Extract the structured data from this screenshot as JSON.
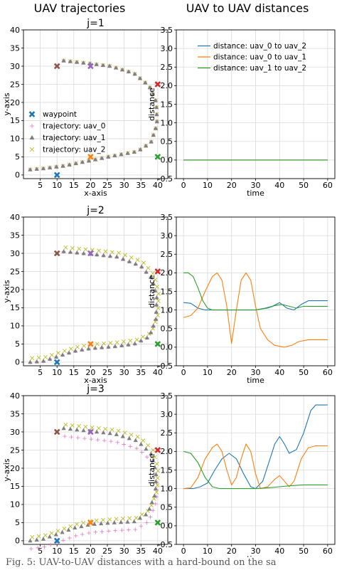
{
  "header": {
    "left_title": "UAV trajectories",
    "right_title": "UAV to UAV distances"
  },
  "caption": "Fig. 5: UAV-to-UAV distances with a hard-bound on the sa",
  "colors": {
    "waypoint_blue": "#1f77b4",
    "waypoint_orange": "#ff7f0e",
    "waypoint_purple": "#9467bd",
    "waypoint_red": "#d62728",
    "waypoint_green": "#2ca02c",
    "waypoint_brown": "#8c564b",
    "uav_0": "#e377c2",
    "uav_1": "#7f7f7f",
    "uav_2": "#bcbd22",
    "dist_02": "#1f77b4",
    "dist_01": "#ff7f0e",
    "dist_12": "#2ca02c"
  },
  "chart_data": [
    {
      "type": "scatter",
      "title": "j=1",
      "xlabel": "x-axis",
      "ylabel": "y-axis",
      "xlim": [
        0,
        43
      ],
      "ylim": [
        -1,
        40
      ],
      "xticks": [
        5,
        10,
        15,
        20,
        25,
        30,
        35,
        40
      ],
      "yticks": [
        0,
        5,
        10,
        15,
        20,
        25,
        30,
        35,
        40
      ],
      "grid": true,
      "legend": "center-left",
      "legend_entries": [
        "waypoint",
        "trajectory: uav_0",
        "trajectory: uav_1",
        "trajectory: uav_2"
      ],
      "waypoints": [
        {
          "x": 10,
          "y": 0,
          "color": "#1f77b4"
        },
        {
          "x": 20,
          "y": 5,
          "color": "#ff7f0e"
        },
        {
          "x": 40,
          "y": 5,
          "color": "#2ca02c"
        },
        {
          "x": 40,
          "y": 25,
          "color": "#d62728"
        },
        {
          "x": 20,
          "y": 30,
          "color": "#9467bd"
        },
        {
          "x": 10,
          "y": 30,
          "color": "#8c564b"
        }
      ],
      "trajectory_path": [
        [
          2,
          1.5
        ],
        [
          6,
          1.8
        ],
        [
          12,
          2.5
        ],
        [
          20,
          4
        ],
        [
          28,
          5.5
        ],
        [
          34,
          6.5
        ],
        [
          38,
          9
        ],
        [
          39.8,
          14
        ],
        [
          39.6,
          20
        ],
        [
          37.5,
          24.5
        ],
        [
          33,
          28
        ],
        [
          26,
          30
        ],
        [
          19,
          30.8
        ],
        [
          12,
          31.5
        ]
      ],
      "series": [
        {
          "name": "trajectory: uav_0",
          "offset": [
            0,
            0
          ]
        },
        {
          "name": "trajectory: uav_1",
          "offset": [
            0,
            0
          ]
        },
        {
          "name": "trajectory: uav_2",
          "offset": [
            0,
            0
          ]
        }
      ]
    },
    {
      "type": "line",
      "xlabel": "time",
      "ylabel": "distance",
      "xlim": [
        -3,
        63
      ],
      "ylim": [
        -0.5,
        3.5
      ],
      "xticks": [
        0,
        10,
        20,
        30,
        40,
        50,
        60
      ],
      "yticks": [
        -0.5,
        0.0,
        0.5,
        1.0,
        1.5,
        2.0,
        2.5,
        3.0,
        3.5
      ],
      "grid": true,
      "legend": "top-right",
      "series": [
        {
          "name": "distance: uav_0 to uav_2",
          "color": "#1f77b4",
          "points": [
            [
              0,
              0
            ],
            [
              60,
              0
            ]
          ]
        },
        {
          "name": "distance: uav_0 to uav_1",
          "color": "#ff7f0e",
          "points": [
            [
              0,
              0
            ],
            [
              60,
              0
            ]
          ]
        },
        {
          "name": "distance: uav_1 to uav_2",
          "color": "#2ca02c",
          "points": [
            [
              0,
              0
            ],
            [
              60,
              0
            ]
          ]
        }
      ]
    },
    {
      "type": "scatter",
      "title": "j=2",
      "xlabel": "x-axis",
      "ylabel": "y-axis",
      "xlim": [
        0,
        43
      ],
      "ylim": [
        -1,
        40
      ],
      "xticks": [
        5,
        10,
        15,
        20,
        25,
        30,
        35,
        40
      ],
      "yticks": [
        0,
        5,
        10,
        15,
        20,
        25,
        30,
        35,
        40
      ],
      "grid": true,
      "waypoints": [
        {
          "x": 10,
          "y": 0,
          "color": "#1f77b4"
        },
        {
          "x": 20,
          "y": 5,
          "color": "#ff7f0e"
        },
        {
          "x": 40,
          "y": 5,
          "color": "#2ca02c"
        },
        {
          "x": 40,
          "y": 25,
          "color": "#d62728"
        },
        {
          "x": 20,
          "y": 30,
          "color": "#9467bd"
        },
        {
          "x": 10,
          "y": 30,
          "color": "#8c564b"
        }
      ],
      "trajectory_path": [
        [
          2,
          0
        ],
        [
          6,
          0.3
        ],
        [
          10,
          1.5
        ],
        [
          15,
          3
        ],
        [
          20,
          3.8
        ],
        [
          27,
          4.3
        ],
        [
          33,
          5
        ],
        [
          37.5,
          7
        ],
        [
          39.5,
          12
        ],
        [
          39.7,
          18
        ],
        [
          38.3,
          23
        ],
        [
          35,
          26.5
        ],
        [
          28,
          29
        ],
        [
          20,
          29.8
        ],
        [
          12,
          30.5
        ]
      ],
      "series": [
        {
          "name": "trajectory: uav_0",
          "offset": [
            0,
            0
          ]
        },
        {
          "name": "trajectory: uav_1",
          "offset": [
            0,
            0
          ]
        },
        {
          "name": "trajectory: uav_2",
          "offset": [
            0.6,
            1.1
          ]
        }
      ]
    },
    {
      "type": "line",
      "xlabel": "time",
      "ylabel": "distance",
      "xlim": [
        -3,
        63
      ],
      "ylim": [
        -0.5,
        3.5
      ],
      "xticks": [
        0,
        10,
        20,
        30,
        40,
        50,
        60
      ],
      "yticks": [
        -0.5,
        0.0,
        0.5,
        1.0,
        1.5,
        2.0,
        2.5,
        3.0,
        3.5
      ],
      "grid": true,
      "series": [
        {
          "name": "distance: uav_0 to uav_2",
          "color": "#1f77b4",
          "points": [
            [
              0,
              1.2
            ],
            [
              3,
              1.18
            ],
            [
              6,
              1.05
            ],
            [
              9,
              1.0
            ],
            [
              30,
              1.0
            ],
            [
              34,
              1.05
            ],
            [
              37,
              1.1
            ],
            [
              40,
              1.2
            ],
            [
              43,
              1.05
            ],
            [
              46,
              1.0
            ],
            [
              49,
              1.15
            ],
            [
              52,
              1.25
            ],
            [
              60,
              1.25
            ]
          ]
        },
        {
          "name": "distance: uav_0 to uav_1",
          "color": "#ff7f0e",
          "points": [
            [
              0,
              0.8
            ],
            [
              3,
              0.85
            ],
            [
              6,
              1.05
            ],
            [
              9,
              1.5
            ],
            [
              12,
              1.9
            ],
            [
              14,
              2.0
            ],
            [
              16,
              1.8
            ],
            [
              18,
              1.1
            ],
            [
              20,
              0.1
            ],
            [
              22,
              1.0
            ],
            [
              24,
              1.8
            ],
            [
              26,
              2.0
            ],
            [
              28,
              1.8
            ],
            [
              30,
              1.1
            ],
            [
              32,
              0.5
            ],
            [
              35,
              0.2
            ],
            [
              38,
              0.05
            ],
            [
              42,
              0.0
            ],
            [
              45,
              0.05
            ],
            [
              48,
              0.15
            ],
            [
              52,
              0.2
            ],
            [
              60,
              0.2
            ]
          ]
        },
        {
          "name": "distance: uav_1 to uav_2",
          "color": "#2ca02c",
          "points": [
            [
              0,
              2.0
            ],
            [
              2,
              2.0
            ],
            [
              4,
              1.9
            ],
            [
              6,
              1.6
            ],
            [
              8,
              1.25
            ],
            [
              10,
              1.05
            ],
            [
              12,
              1.0
            ],
            [
              30,
              1.0
            ],
            [
              35,
              1.05
            ],
            [
              38,
              1.12
            ],
            [
              41,
              1.15
            ],
            [
              44,
              1.1
            ],
            [
              47,
              1.05
            ],
            [
              50,
              1.1
            ],
            [
              53,
              1.1
            ],
            [
              60,
              1.1
            ]
          ]
        }
      ]
    },
    {
      "type": "scatter",
      "title": "j=3",
      "xlabel": "x-axis",
      "ylabel": "y-axis",
      "xlim": [
        0,
        43
      ],
      "ylim": [
        -1,
        40
      ],
      "xticks": [
        5,
        10,
        15,
        20,
        25,
        30,
        35,
        40
      ],
      "yticks": [
        0,
        5,
        10,
        15,
        20,
        25,
        30,
        35,
        40
      ],
      "grid": true,
      "waypoints": [
        {
          "x": 10,
          "y": 0,
          "color": "#1f77b4"
        },
        {
          "x": 20,
          "y": 5,
          "color": "#ff7f0e"
        },
        {
          "x": 40,
          "y": 5,
          "color": "#2ca02c"
        },
        {
          "x": 40,
          "y": 25,
          "color": "#d62728"
        },
        {
          "x": 20,
          "y": 30,
          "color": "#9467bd"
        },
        {
          "x": 10,
          "y": 30,
          "color": "#8c564b"
        }
      ],
      "trajectory_path": [
        [
          2,
          0
        ],
        [
          6,
          0.5
        ],
        [
          10,
          1.8
        ],
        [
          15,
          3.5
        ],
        [
          20,
          4.5
        ],
        [
          27,
          5
        ],
        [
          33,
          5.3
        ],
        [
          37,
          7.5
        ],
        [
          39.3,
          13
        ],
        [
          39.5,
          19
        ],
        [
          38,
          24
        ],
        [
          34,
          27.5
        ],
        [
          27,
          29.5
        ],
        [
          19,
          30.3
        ],
        [
          12,
          31
        ]
      ],
      "series": [
        {
          "name": "trajectory: uav_0",
          "offset": [
            0.3,
            -2.2
          ]
        },
        {
          "name": "trajectory: uav_1",
          "offset": [
            0,
            0
          ]
        },
        {
          "name": "trajectory: uav_2",
          "offset": [
            0.6,
            1.0
          ]
        }
      ]
    },
    {
      "type": "line",
      "xlabel": "time",
      "ylabel": "distance",
      "xlim": [
        -3,
        63
      ],
      "ylim": [
        -0.5,
        3.5
      ],
      "xticks": [
        0,
        10,
        20,
        30,
        40,
        50,
        60
      ],
      "yticks": [
        -0.5,
        0.0,
        0.5,
        1.0,
        1.5,
        2.0,
        2.5,
        3.0,
        3.5
      ],
      "grid": true,
      "series": [
        {
          "name": "distance: uav_0 to uav_2",
          "color": "#1f77b4",
          "points": [
            [
              0,
              1.0
            ],
            [
              4,
              1.0
            ],
            [
              7,
              1.05
            ],
            [
              10,
              1.15
            ],
            [
              13,
              1.5
            ],
            [
              16,
              1.8
            ],
            [
              19,
              1.95
            ],
            [
              22,
              1.8
            ],
            [
              25,
              1.4
            ],
            [
              28,
              1.05
            ],
            [
              30,
              1.0
            ],
            [
              33,
              1.2
            ],
            [
              36,
              1.8
            ],
            [
              38,
              2.2
            ],
            [
              40,
              2.4
            ],
            [
              42,
              2.2
            ],
            [
              44,
              1.95
            ],
            [
              47,
              2.05
            ],
            [
              50,
              2.5
            ],
            [
              53,
              3.1
            ],
            [
              55,
              3.25
            ],
            [
              60,
              3.25
            ]
          ]
        },
        {
          "name": "distance: uav_0 to uav_1",
          "color": "#ff7f0e",
          "points": [
            [
              0,
              1.0
            ],
            [
              3,
              1.02
            ],
            [
              6,
              1.3
            ],
            [
              9,
              1.8
            ],
            [
              12,
              2.1
            ],
            [
              14,
              2.2
            ],
            [
              16,
              2.0
            ],
            [
              18,
              1.5
            ],
            [
              20,
              1.1
            ],
            [
              22,
              1.3
            ],
            [
              24,
              1.8
            ],
            [
              26,
              2.2
            ],
            [
              28,
              2.0
            ],
            [
              30,
              1.4
            ],
            [
              32,
              1.0
            ],
            [
              35,
              1.05
            ],
            [
              38,
              1.25
            ],
            [
              40,
              1.35
            ],
            [
              42,
              1.2
            ],
            [
              44,
              1.05
            ],
            [
              46,
              1.2
            ],
            [
              49,
              1.8
            ],
            [
              52,
              2.1
            ],
            [
              55,
              2.15
            ],
            [
              60,
              2.15
            ]
          ]
        },
        {
          "name": "distance: uav_1 to uav_2",
          "color": "#2ca02c",
          "points": [
            [
              0,
              2.0
            ],
            [
              3,
              1.95
            ],
            [
              6,
              1.7
            ],
            [
              9,
              1.3
            ],
            [
              12,
              1.05
            ],
            [
              15,
              1.0
            ],
            [
              30,
              1.0
            ],
            [
              35,
              1.02
            ],
            [
              40,
              1.05
            ],
            [
              45,
              1.08
            ],
            [
              50,
              1.1
            ],
            [
              55,
              1.1
            ],
            [
              60,
              1.1
            ]
          ]
        }
      ]
    }
  ]
}
